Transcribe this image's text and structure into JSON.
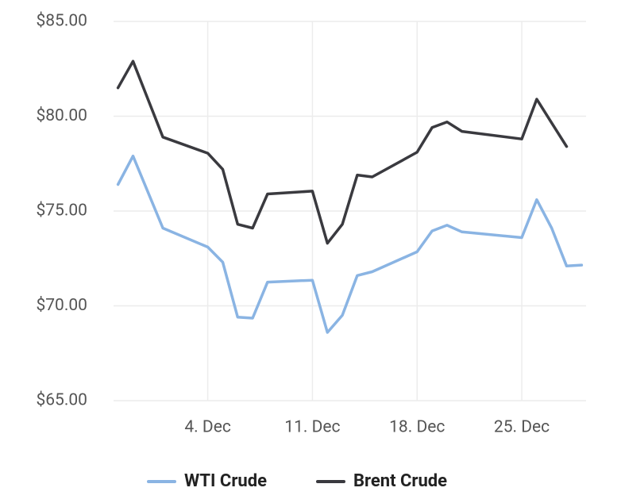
{
  "chart_data": {
    "type": "line",
    "x": [
      -2,
      -1,
      1,
      4,
      5,
      6,
      7,
      8,
      11,
      12,
      13,
      14,
      15,
      18,
      19,
      20,
      21,
      25,
      26,
      27,
      28,
      29
    ],
    "series": [
      {
        "name": "WTI Crude",
        "color": "#8ab4e3",
        "values": [
          76.4,
          77.9,
          74.1,
          73.1,
          72.3,
          69.4,
          69.35,
          71.25,
          71.35,
          68.6,
          69.5,
          71.6,
          71.8,
          72.85,
          73.95,
          74.25,
          73.9,
          73.6,
          75.6,
          74.1,
          72.1,
          72.15
        ]
      },
      {
        "name": "Brent Crude",
        "color": "#3a3a3f",
        "values": [
          81.5,
          82.9,
          78.9,
          78.05,
          77.2,
          74.3,
          74.1,
          75.9,
          76.05,
          73.3,
          74.3,
          76.9,
          76.8,
          78.1,
          79.4,
          79.7,
          79.2,
          78.8,
          80.9,
          79.65,
          78.4,
          null
        ]
      }
    ],
    "xlim": [
      -2.3,
      29.3
    ],
    "xticks": [
      {
        "value": 4,
        "label": "4. Dec"
      },
      {
        "value": 11,
        "label": "11. Dec"
      },
      {
        "value": 18,
        "label": "18. Dec"
      },
      {
        "value": 25,
        "label": "25. Dec"
      }
    ],
    "ylim": [
      65,
      85
    ],
    "yticks": [
      {
        "value": 65,
        "label": "$65.00"
      },
      {
        "value": 70,
        "label": "$70.00"
      },
      {
        "value": 75,
        "label": "$75.00"
      },
      {
        "value": 80,
        "label": "$80.00"
      },
      {
        "value": 85,
        "label": "$85.00"
      }
    ],
    "grid": true,
    "legend": "bottom"
  }
}
